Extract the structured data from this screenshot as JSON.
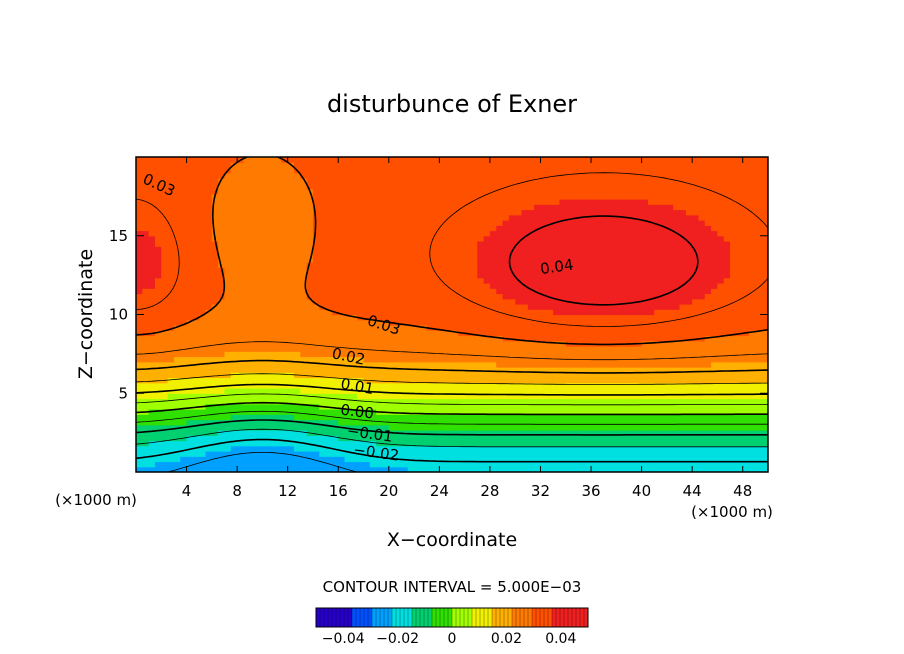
{
  "chart_data": {
    "type": "heatmap",
    "title": "disturbunce of Exner",
    "xlabel": "X−coordinate",
    "ylabel": "Z−coordinate",
    "x_unit": "(×1000 m)",
    "y_unit": "(×1000 m)",
    "xlim": [
      0,
      50
    ],
    "ylim": [
      0,
      20
    ],
    "x_ticks": [
      4,
      8,
      12,
      16,
      20,
      24,
      28,
      32,
      36,
      40,
      44,
      48
    ],
    "x_tick_labels": [
      "4",
      "8",
      "12",
      "16",
      "20",
      "24",
      "28",
      "32",
      "36",
      "40",
      "44",
      "48"
    ],
    "y_ticks": [
      5,
      10,
      15
    ],
    "y_tick_labels": [
      "5",
      "10",
      "15"
    ],
    "contour_interval_text": "CONTOUR INTERVAL = 5.000E−03",
    "contour_interval": 0.005,
    "value_range": [
      -0.045,
      0.045
    ],
    "contour_labels": [
      {
        "text": "0.03",
        "x": 1.8,
        "z": 18.2,
        "angle": 25
      },
      {
        "text": "0.04",
        "x": 33.3,
        "z": 13.0,
        "angle": -8
      },
      {
        "text": "0.03",
        "x": 19.6,
        "z": 9.3,
        "angle": 18
      },
      {
        "text": "0.02",
        "x": 16.8,
        "z": 7.3,
        "angle": 12
      },
      {
        "text": "0.01",
        "x": 17.5,
        "z": 5.4,
        "angle": 10
      },
      {
        "text": "0.00",
        "x": 17.5,
        "z": 3.8,
        "angle": 7
      },
      {
        "text": "−0.01",
        "x": 18.5,
        "z": 2.4,
        "angle": 8
      },
      {
        "text": "−0.02",
        "x": 19.0,
        "z": 1.2,
        "angle": 8
      }
    ],
    "colorbar": {
      "tick_labels": [
        "−0.04",
        "−0.02",
        "0",
        "0.02",
        "0.04"
      ],
      "tick_values": [
        -0.04,
        -0.02,
        0,
        0.02,
        0.04
      ],
      "range": [
        -0.05,
        0.05
      ]
    },
    "palette": [
      "#2600c8",
      "#0050ff",
      "#00a0ff",
      "#00e0e0",
      "#00d070",
      "#30e000",
      "#a0ff00",
      "#f0f000",
      "#ffb000",
      "#ff7a00",
      "#ff5000",
      "#f02020"
    ]
  }
}
